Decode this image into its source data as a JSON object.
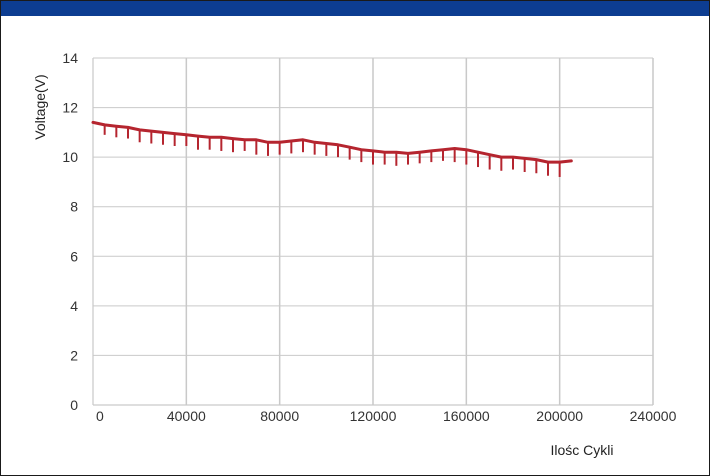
{
  "colors": {
    "header_bar": "#0d3d91",
    "series_line": "#b5252f",
    "grid": "#c9c9c9",
    "frame": "#1a1a1a"
  },
  "chart_data": {
    "type": "line",
    "title": "",
    "xlabel": "Ilośc Cykli",
    "ylabel": "Voltage(V)",
    "xlim": [
      0,
      240000
    ],
    "ylim": [
      0,
      14
    ],
    "x_ticks": [
      0,
      40000,
      80000,
      120000,
      160000,
      200000,
      240000
    ],
    "x_tick_labels": [
      "0",
      "40000",
      "80000",
      "120000",
      "160000",
      "200000",
      "240000"
    ],
    "y_ticks": [
      0,
      2,
      4,
      6,
      8,
      10,
      12,
      14
    ],
    "y_tick_labels": [
      "0",
      "2",
      "4",
      "6",
      "8",
      "10",
      "12",
      "14"
    ],
    "grid": true,
    "legend": "none",
    "series": [
      {
        "x": [
          0,
          5000,
          10000,
          15000,
          20000,
          25000,
          30000,
          35000,
          40000,
          45000,
          50000,
          55000,
          60000,
          65000,
          70000,
          75000,
          80000,
          85000,
          90000,
          95000,
          100000,
          105000,
          110000,
          115000,
          120000,
          125000,
          130000,
          135000,
          140000,
          145000,
          150000,
          155000,
          160000,
          165000,
          170000,
          175000,
          180000,
          185000,
          190000,
          195000,
          200000,
          205000
        ],
        "y": [
          11.4,
          11.3,
          11.25,
          11.2,
          11.1,
          11.05,
          11.0,
          10.95,
          10.9,
          10.85,
          10.8,
          10.8,
          10.75,
          10.7,
          10.7,
          10.6,
          10.6,
          10.65,
          10.7,
          10.6,
          10.55,
          10.5,
          10.4,
          10.3,
          10.25,
          10.2,
          10.2,
          10.15,
          10.2,
          10.25,
          10.3,
          10.35,
          10.3,
          10.2,
          10.1,
          10.0,
          10.0,
          9.95,
          9.9,
          9.8,
          9.8,
          9.85
        ]
      },
      {
        "x": [
          5000,
          10000,
          15000,
          20000,
          25000,
          30000,
          35000,
          40000,
          45000,
          50000,
          55000,
          60000,
          65000,
          70000,
          75000,
          80000,
          85000,
          90000,
          95000,
          100000,
          105000,
          110000,
          115000,
          120000,
          125000,
          130000,
          135000,
          140000,
          145000,
          150000,
          155000,
          160000,
          165000,
          170000,
          175000,
          180000,
          185000,
          190000,
          195000,
          200000
        ],
        "y": [
          10.9,
          10.8,
          10.75,
          10.6,
          10.55,
          10.5,
          10.45,
          10.45,
          10.3,
          10.3,
          10.25,
          10.2,
          10.25,
          10.1,
          10.05,
          10.1,
          10.15,
          10.2,
          10.1,
          10.05,
          10.0,
          9.9,
          9.8,
          9.7,
          9.7,
          9.65,
          9.7,
          9.75,
          9.8,
          9.85,
          9.8,
          9.7,
          9.6,
          9.5,
          9.45,
          9.5,
          9.4,
          9.35,
          9.25,
          9.2
        ]
      }
    ]
  }
}
